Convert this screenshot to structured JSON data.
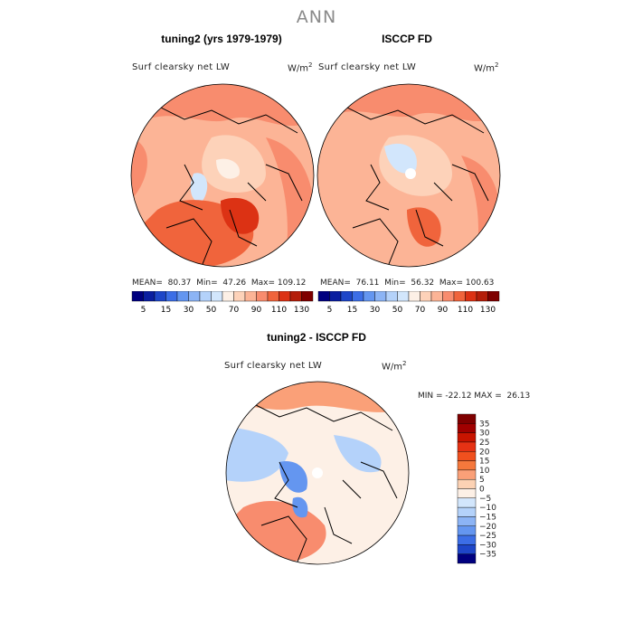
{
  "page": {
    "title": "ANN"
  },
  "panels": [
    {
      "title": "tuning2 (yrs 1979-1979)",
      "variable": "Surf clearsky net LW",
      "units_base": "W/m",
      "units_exp": "2",
      "stats": {
        "mean_label": "MEAN=",
        "mean": "80.37",
        "min_label": "Min=",
        "min": "47.26",
        "max_label": "Max=",
        "max": "109.12"
      }
    },
    {
      "title": "ISCCP FD",
      "variable": "Surf clearsky net LW",
      "units_base": "W/m",
      "units_exp": "2",
      "stats": {
        "mean_label": "MEAN=",
        "mean": "76.11",
        "min_label": "Min=",
        "min": "56.32",
        "max_label": "Max=",
        "max": "100.63"
      }
    },
    {
      "title": "tuning2 - ISCCP FD",
      "variable": "Surf clearsky net LW",
      "units_base": "W/m",
      "units_exp": "2",
      "stats_text": "MIN = -22.12 MAX =  26.13"
    }
  ],
  "chart_data": [
    {
      "type": "heatmap",
      "projection": "polar-stereographic",
      "hemisphere": "north",
      "title": "tuning2 (yrs 1979-1979)",
      "variable": "Surf clearsky net LW",
      "units": "W/m2",
      "mean": 80.37,
      "min": 47.26,
      "max": 109.12,
      "colorbar": {
        "orientation": "horizontal",
        "levels": [
          5,
          10,
          15,
          20,
          30,
          40,
          50,
          60,
          70,
          80,
          90,
          100,
          110,
          120,
          130
        ],
        "tick_labels": [
          "5",
          "15",
          "30",
          "50",
          "70",
          "90",
          "110",
          "130"
        ],
        "colors": [
          "#00007f",
          "#0a1ea0",
          "#1e46c8",
          "#3c6ee6",
          "#6496f0",
          "#8cb4f5",
          "#b4d2fa",
          "#d2e6fc",
          "#fdf0e6",
          "#fdd2b9",
          "#fcb496",
          "#f88c6e",
          "#f0643c",
          "#dc3214",
          "#b41e0a",
          "#7f0000"
        ]
      }
    },
    {
      "type": "heatmap",
      "projection": "polar-stereographic",
      "hemisphere": "north",
      "title": "ISCCP FD",
      "variable": "Surf clearsky net LW",
      "units": "W/m2",
      "mean": 76.11,
      "min": 56.32,
      "max": 100.63,
      "colorbar": {
        "orientation": "horizontal",
        "levels": [
          5,
          10,
          15,
          20,
          30,
          40,
          50,
          60,
          70,
          80,
          90,
          100,
          110,
          120,
          130
        ],
        "tick_labels": [
          "5",
          "15",
          "30",
          "50",
          "70",
          "90",
          "110",
          "130"
        ],
        "colors": [
          "#00007f",
          "#0a1ea0",
          "#1e46c8",
          "#3c6ee6",
          "#6496f0",
          "#8cb4f5",
          "#b4d2fa",
          "#d2e6fc",
          "#fdf0e6",
          "#fdd2b9",
          "#fcb496",
          "#f88c6e",
          "#f0643c",
          "#dc3214",
          "#b41e0a",
          "#7f0000"
        ]
      }
    },
    {
      "type": "heatmap",
      "projection": "polar-stereographic",
      "hemisphere": "north",
      "title": "tuning2 - ISCCP FD",
      "variable": "Surf clearsky net LW",
      "units": "W/m2",
      "min": -22.12,
      "max": 26.13,
      "colorbar": {
        "orientation": "vertical",
        "levels": [
          -35,
          -30,
          -25,
          -20,
          -15,
          -10,
          -5,
          0,
          5,
          10,
          15,
          20,
          25,
          30,
          35
        ],
        "tick_labels": [
          "35",
          "30",
          "25",
          "20",
          "15",
          "10",
          "5",
          "0",
          "−5",
          "−10",
          "−15",
          "−20",
          "−25",
          "−30",
          "−35"
        ],
        "colors": [
          "#7f0000",
          "#a00000",
          "#c81400",
          "#e63214",
          "#f0501e",
          "#f5783c",
          "#faa078",
          "#fcd2b4",
          "#fdf0e6",
          "#d2e6fc",
          "#b4d2fa",
          "#8cb4f5",
          "#6496f0",
          "#3c6ee6",
          "#1e46c8",
          "#00007f"
        ]
      }
    }
  ]
}
